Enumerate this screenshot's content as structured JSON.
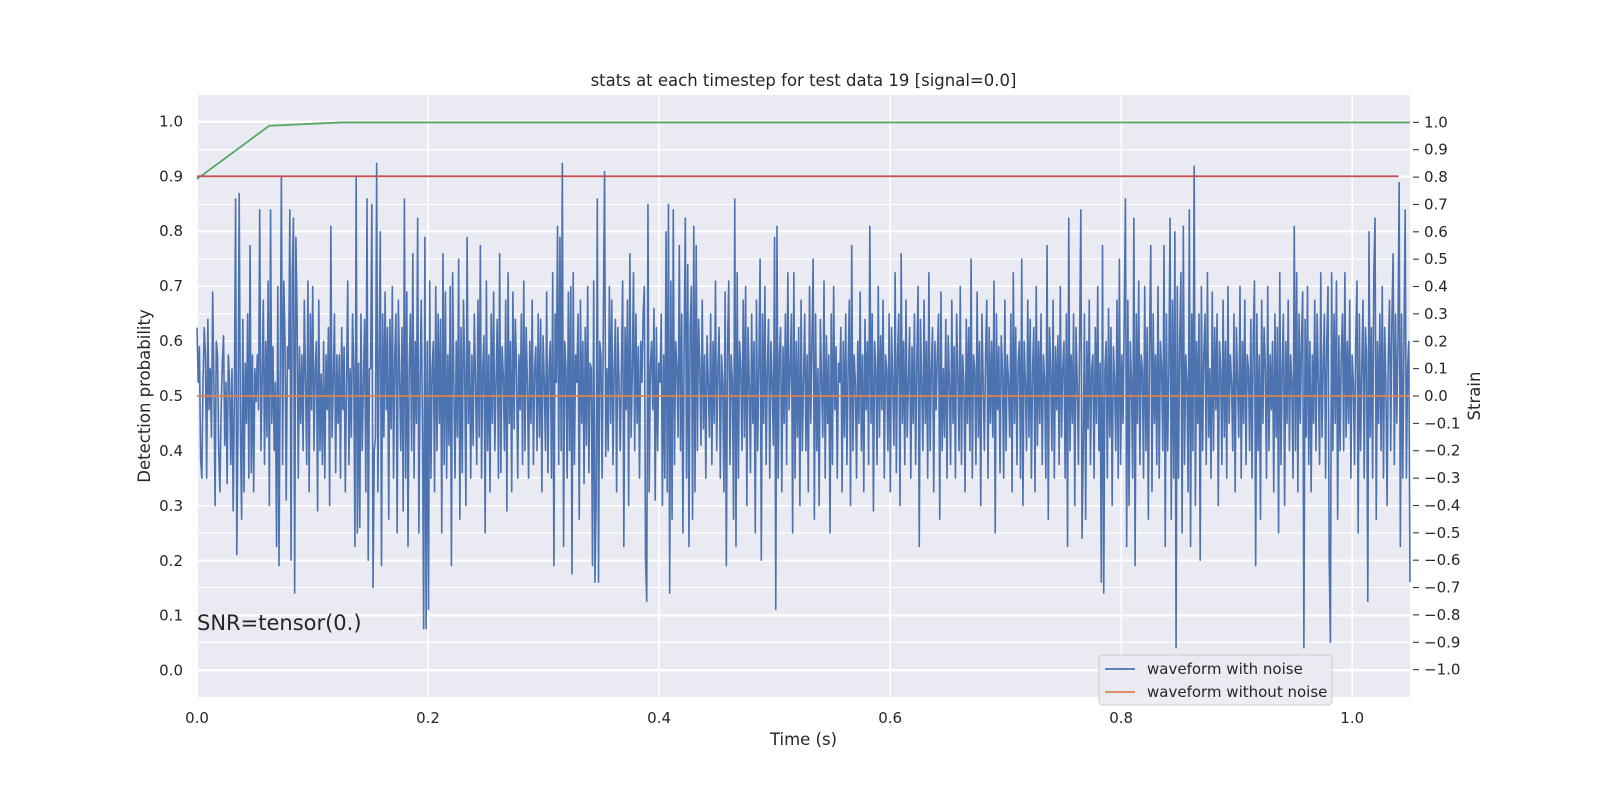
{
  "chart_data": {
    "type": "line",
    "title": "stats at each timestep for test data 19 [signal=0.0]",
    "xlabel": "Time (s)",
    "ylabel": "Detection probability",
    "y2label": "Strain",
    "annotation": "SNR=tensor(0.)",
    "xlim": [
      0.0,
      1.05
    ],
    "ylim": [
      -0.048,
      1.048
    ],
    "y2lim": [
      -1.1,
      1.1
    ],
    "grid": true,
    "background": "#eaeaf2",
    "legend_position": "lower-right",
    "x_ticks": [
      "0.0",
      "0.2",
      "0.4",
      "0.6",
      "0.8",
      "1.0"
    ],
    "y_ticks": [
      "0.0",
      "0.1",
      "0.2",
      "0.3",
      "0.4",
      "0.5",
      "0.6",
      "0.7",
      "0.8",
      "0.9",
      "1.0"
    ],
    "y2_ticks": [
      "−1.0",
      "−0.9",
      "−0.8",
      "−0.7",
      "−0.6",
      "−0.5",
      "−0.4",
      "−0.3",
      "−0.2",
      "−0.1",
      "0.0",
      "0.1",
      "0.2",
      "0.3",
      "0.4",
      "0.5",
      "0.6",
      "0.7",
      "0.8",
      "0.9",
      "1.0"
    ],
    "series": [
      {
        "name": "waveform with noise",
        "axis": "right",
        "color": "#4c72b0",
        "x_start": 0.0,
        "x_end": 1.05,
        "y": [
          0.25,
          0.05,
          0.18,
          -0.23,
          -0.3,
          0.05,
          0.25,
          0.15,
          -0.3,
          0.28,
          -0.05,
          0.1,
          -0.15,
          0.38,
          0.05,
          -0.4,
          0.2,
          0.15,
          -0.2,
          -0.35,
          -0.05,
          0.12,
          0.22,
          -0.18,
          0.05,
          -0.32,
          0.15,
          0.05,
          -0.25,
          0.1,
          -0.42,
          0.0,
          0.72,
          -0.58,
          -0.1,
          0.74,
          -0.12,
          -0.45,
          0.28,
          -0.35,
          0.12,
          -0.1,
          0.3,
          -0.3,
          0.55,
          -0.28,
          0.15,
          -0.35,
          0.1,
          -0.02,
          0.15,
          -0.05,
          0.68,
          -0.2,
          0.05,
          0.35,
          -0.25,
          0.2,
          -0.15,
          0.42,
          -0.4,
          0.68,
          -0.1,
          0.18,
          -0.2,
          0.05,
          -0.55,
          0.4,
          -0.62,
          0.08,
          0.8,
          -0.25,
          0.42,
          0.2,
          -0.38,
          0.18,
          0.1,
          0.68,
          -0.6,
          0.45,
          0.65,
          -0.72,
          0.58,
          0.3,
          -0.3,
          0.18,
          -0.1,
          0.15,
          -0.2,
          0.35,
          0.05,
          -0.25,
          0.42,
          -0.35,
          0.3,
          -0.05,
          0.4,
          -0.2,
          0.1,
          0.2,
          -0.42,
          0.35,
          -0.2,
          0.08,
          -0.25,
          0.2,
          -0.3,
          0.15,
          -0.05,
          0.25,
          -0.4,
          0.62,
          -0.15,
          0.05,
          0.3,
          -0.28,
          0.15,
          -0.1,
          0.15,
          -0.3,
          0.25,
          -0.05,
          0.18,
          -0.35,
          0.05,
          0.42,
          -0.25,
          0.1,
          -0.15,
          0.3,
          0.1,
          -0.55,
          0.8,
          -0.5,
          0.12,
          -0.48,
          0.3,
          -0.2,
          0.05,
          0.28,
          -0.35,
          0.72,
          -0.6,
          0.1,
          0.1,
          0.7,
          -0.7,
          -0.2,
          -0.15,
          0.85,
          -0.35,
          0.12,
          0.6,
          -0.62,
          0.3,
          -0.15,
          0.38,
          -0.05,
          0.25,
          -0.45,
          0.28,
          -0.12,
          0.4,
          -0.3,
          0.15,
          0.3,
          -0.5,
          0.35,
          0.08,
          -0.2,
          0.25,
          -0.42,
          0.72,
          -0.3,
          0.38,
          -0.55,
          0.1,
          0.3,
          -0.2,
          0.52,
          -0.3,
          0.2,
          -0.1,
          0.65,
          -0.5,
          0.05,
          0.35,
          -0.12,
          -0.85,
          0.58,
          -0.85,
          0.2,
          -0.78,
          0.42,
          -0.3,
          0.1,
          0.2,
          -0.35,
          0.4,
          -0.2,
          0.3,
          -0.1,
          0.28,
          -0.5,
          0.52,
          -0.25,
          0.38,
          -0.3,
          0.15,
          -0.18,
          0.4,
          -0.62,
          0.45,
          0.05,
          -0.3,
          0.2,
          -0.15,
          0.5,
          -0.45,
          0.25,
          -0.28,
          0.35,
          0.1,
          -0.4,
          0.58,
          -0.1,
          0.2,
          -0.3,
          0.15,
          -0.18,
          0.3,
          0.05,
          -0.25,
          0.35,
          -0.15,
          0.55,
          -0.3,
          0.1,
          0.22,
          -0.5,
          0.42,
          -0.2,
          0.15,
          -0.35,
          0.3,
          -0.1,
          0.38,
          -0.2,
          0.05,
          0.28,
          -0.3,
          0.52,
          -0.28,
          0.18,
          0.08,
          -0.2,
          0.35,
          -0.42,
          0.45,
          -0.1,
          0.2,
          -0.35,
          0.38,
          -0.12,
          0.28,
          0.1,
          -0.3,
          0.15,
          -0.05,
          0.3,
          -0.25,
          0.42,
          -0.2,
          0.25,
          0.05,
          -0.3,
          0.2,
          -0.1,
          0.35,
          -0.25,
          0.1,
          0.18,
          -0.2,
          0.3,
          -0.15,
          0.28,
          -0.35,
          0.22,
          0.05,
          -0.2,
          0.38,
          -0.28,
          0.1,
          0.2,
          -0.3,
          0.45,
          -0.62,
          0.3,
          0.05,
          0.62,
          -0.25,
          0.58,
          -0.2,
          0.85,
          -0.55,
          0.2,
          0.1,
          -0.3,
          0.38,
          -0.2,
          0.4,
          -0.65,
          0.45,
          -0.25,
          0.15,
          0.05,
          0.3,
          -0.45,
          0.35,
          -0.1,
          0.2,
          -0.32,
          0.25,
          -0.18,
          0.4,
          -0.28,
          0.12,
          0.1,
          -0.62,
          0.42,
          -0.68,
          -0.4,
          0.72,
          -0.68,
          0.2,
          0.15,
          -0.3,
          0.28,
          0.82,
          -0.22,
          0.1,
          -0.2,
          0.4,
          -0.1,
          0.35,
          -0.25,
          0.1,
          0.28,
          -0.35,
          0.25,
          0.05,
          -0.2,
          0.1,
          0.42,
          -0.55,
          0.25,
          -0.05,
          0.35,
          -0.4,
          0.52,
          -0.15,
          0.08,
          0.45,
          -0.2,
          0.3,
          -0.1,
          0.18,
          -0.3,
          0.2,
          0.05,
          0.3,
          0.4,
          -0.6,
          -0.75,
          0.7,
          -0.35,
          0.1,
          0.2,
          -0.05,
          0.32,
          -0.38,
          0.25,
          -0.2,
          0.12,
          0.05,
          0.3,
          -0.4,
          0.15,
          -0.3,
          0.6,
          -0.35,
          0.7,
          -0.72,
          0.42,
          -0.45,
          0.68,
          -0.25,
          0.2,
          0.1,
          -0.15,
          0.55,
          -0.2,
          0.3,
          -0.5,
          0.18,
          0.65,
          -0.3,
          0.48,
          -0.55,
          0.25,
          0.4,
          -0.45,
          0.62,
          -0.35,
          0.55,
          -0.2,
          0.28,
          0.1,
          -0.18,
          0.35,
          -0.12,
          0.15,
          -0.3,
          0.22,
          0.05,
          -0.15,
          0.3,
          -0.25,
          0.2,
          -0.1,
          0.42,
          -0.2,
          0.1,
          0.25,
          -0.3,
          0.15,
          0.05,
          -0.35,
          0.38,
          -0.62,
          0.18,
          0.42,
          -0.25,
          0.15,
          0.05,
          -0.45,
          0.72,
          -0.55,
          0.45,
          -0.3,
          0.2,
          0.1,
          -0.2,
          0.35,
          -0.15,
          0.4,
          -0.4,
          0.25,
          0.05,
          -0.28,
          0.3,
          -0.1,
          0.2,
          -0.5,
          0.35,
          -0.2,
          0.12,
          0.5,
          -0.6,
          0.3,
          -0.1,
          0.4,
          -0.25,
          0.1,
          0.28,
          -0.3,
          0.2,
          0.05,
          -0.18,
          0.58,
          -0.78,
          0.62,
          -0.3,
          0.15,
          0.25,
          -0.35,
          0.18,
          -0.1,
          0.3,
          -0.25,
          0.45,
          -0.05,
          0.1,
          0.3,
          -0.5,
          0.45,
          -0.3,
          0.2,
          -0.15,
          0.25,
          -0.4,
          0.35,
          -0.2,
          0.05,
          0.3,
          -0.2,
          0.15,
          -0.35,
          0.4,
          -0.1,
          0.2,
          0.5,
          -0.45,
          0.3,
          -0.2,
          0.1,
          -0.4,
          0.28,
          0.05,
          -0.15,
          0.42,
          -0.3,
          0.22,
          -0.1,
          0.15,
          -0.5,
          0.3,
          -0.25,
          0.4,
          -0.05,
          0.18,
          -0.3,
          0.12,
          0.05,
          0.25,
          -0.35,
          0.2,
          -0.15,
          0.3,
          -0.25,
          0.1,
          0.35,
          -0.4,
          0.55,
          -0.2,
          0.15,
          0.05,
          -0.3,
          0.2,
          -0.1,
          0.38,
          -0.2,
          0.15,
          -0.35,
          0.28,
          -0.05,
          0.2,
          -0.25,
          0.62,
          -0.1,
          0.3,
          -0.42,
          0.2,
          0.1,
          -0.25,
          0.4,
          -0.15,
          0.22,
          -0.05,
          0.35,
          -0.3,
          0.15,
          0.1,
          -0.2,
          0.3,
          -0.35,
          0.25,
          0.05,
          -0.18,
          0.45,
          -0.28,
          0.15,
          0.3,
          -0.4,
          0.52,
          -0.1,
          0.2,
          -0.25,
          0.35,
          -0.15,
          0.05,
          0.25,
          -0.3,
          0.18,
          -0.1,
          0.3,
          -0.25,
          0.12,
          0.4,
          -0.55,
          0.28,
          0.05,
          -0.2,
          0.35,
          -0.1,
          0.2,
          -0.3,
          0.45,
          -0.2,
          0.1,
          0.25,
          -0.35,
          0.2,
          -0.05,
          0.15,
          0.3,
          -0.45,
          0.38,
          -0.2,
          0.1,
          -0.15,
          0.28,
          -0.3,
          0.22,
          0.05,
          -0.25,
          0.35,
          -0.1,
          0.18,
          -0.3,
          0.3,
          0.08,
          -0.2,
          0.4,
          -0.25,
          0.15,
          0.05,
          -0.35,
          0.28,
          -0.1,
          0.25,
          -0.2,
          0.5,
          -0.3,
          0.15,
          0.1,
          -0.25,
          0.38,
          -0.15,
          0.2,
          -0.4,
          0.3,
          0.05,
          -0.2,
          0.15,
          0.35,
          -0.3,
          0.25,
          -0.1,
          0.2,
          -0.15,
          0.42,
          -0.5,
          0.3,
          -0.05,
          0.18,
          -0.28,
          0.22,
          0.1,
          -0.3,
          0.35,
          -0.2,
          0.15,
          0.05,
          -0.15,
          0.3,
          -0.35,
          0.45,
          -0.1,
          0.25,
          -0.25,
          0.12,
          0.2,
          -0.3,
          0.5,
          -0.4,
          0.2,
          0.05,
          -0.2,
          0.35,
          -0.15,
          0.28,
          -0.3,
          0.1,
          0.25,
          -0.35,
          0.4,
          -0.18,
          0.2,
          -0.1,
          0.3,
          -0.25,
          0.15,
          0.05,
          -0.3,
          0.55,
          -0.45,
          0.25,
          0.1,
          -0.2,
          0.35,
          -0.3,
          0.18,
          -0.05,
          0.22,
          -0.25,
          0.4,
          -0.15,
          0.1,
          0.2,
          -0.3,
          0.3,
          -0.55,
          0.65,
          -0.2,
          0.15,
          -0.1,
          0.3,
          -0.4,
          0.25,
          0.05,
          -0.25,
          0.2,
          0.68,
          -0.52,
          -0.2,
          0.3,
          -0.45,
          0.2,
          -0.12,
          0.35,
          -0.25,
          0.1,
          0.15,
          -0.3,
          0.25,
          -0.1,
          0.4,
          -0.2,
          0.12,
          -0.68,
          0.55,
          -0.72,
          0.1,
          0.2,
          -0.3,
          0.32,
          -0.15,
          0.25,
          -0.4,
          0.18,
          0.05,
          -0.2,
          0.35,
          -0.3,
          0.5,
          -0.25,
          0.15,
          -0.1,
          0.28,
          0.72,
          -0.55,
          0.35,
          -0.4,
          0.2,
          0.05,
          -0.3,
          0.65,
          -0.62,
          0.3,
          -0.1,
          0.42,
          -0.25,
          0.15,
          0.1,
          -0.3,
          0.4,
          -0.2,
          0.25,
          -0.45,
          0.2,
          0.55,
          -0.35,
          0.3,
          -0.1,
          0.15,
          -0.25,
          0.4,
          -0.3,
          0.2,
          0.1,
          -0.2,
          0.55,
          -0.55,
          0.3,
          -0.2,
          0.1,
          0.65,
          -0.45,
          0.35,
          -0.3,
          0.6,
          -0.92,
          0.4,
          -0.3,
          0.2,
          0.45,
          -0.5,
          0.62,
          -0.25,
          0.15,
          0.05,
          -0.35,
          0.68,
          -0.55,
          0.3,
          -0.2,
          0.84,
          -0.4,
          0.2,
          -0.1,
          0.3,
          -0.6,
          0.4,
          -0.2,
          0.15,
          0.3,
          -0.25,
          0.45,
          -0.15,
          0.1,
          -0.3,
          0.38,
          -0.2,
          0.25,
          -0.05,
          0.3,
          -0.4,
          0.2,
          0.1,
          -0.25,
          0.35,
          -0.15,
          0.2,
          -0.3,
          0.4,
          -0.1,
          0.15,
          0.05,
          -0.2,
          0.3,
          -0.35,
          0.25,
          0.05,
          -0.15,
          0.4,
          -0.3,
          0.2,
          -0.1,
          0.35,
          -0.25,
          0.15,
          0.1,
          -0.2,
          0.28,
          -0.3,
          0.22,
          0.42,
          -0.62,
          0.3,
          -0.2,
          0.15,
          -0.45,
          0.35,
          -0.1,
          0.25,
          0.1,
          -0.3,
          0.4,
          -0.2,
          0.15,
          -0.05,
          0.2,
          -0.35,
          0.3,
          -0.15,
          0.25,
          -0.5,
          0.45,
          -0.25,
          0.1,
          0.3,
          -0.4,
          0.2,
          -0.1,
          0.35,
          -0.2,
          0.15,
          0.05,
          -0.3,
          0.62,
          -0.2,
          0.45,
          -0.35,
          0.3,
          -0.1,
          0.2,
          0.38,
          -0.92,
          0.28,
          -0.15,
          0.4,
          -0.25,
          0.2,
          -0.35,
          0.15,
          -0.1,
          0.35,
          -0.2,
          0.3,
          0.05,
          -0.25,
          0.45,
          -0.15,
          0.1,
          0.3,
          -0.3,
          0.2,
          0.4,
          -0.6,
          -0.9,
          0.45,
          -0.2,
          0.3,
          -0.1,
          0.42,
          -0.45,
          0.22,
          -0.2,
          0.15,
          0.3,
          -0.2,
          0.45,
          -0.15,
          0.2,
          -0.1,
          0.35,
          -0.3,
          0.15,
          0.05,
          -0.25,
          0.2,
          0.42,
          -0.5,
          0.3,
          -0.2,
          0.1,
          0.35,
          -0.3,
          0.25,
          0.15,
          -0.75,
          0.6,
          -0.15,
          0.25,
          -0.3,
          0.45,
          0.65,
          -0.45,
          0.2,
          -0.1,
          0.3,
          -0.2,
          0.4,
          -0.3,
          0.25,
          0.05,
          -0.4,
          0.15,
          0.35,
          -0.2,
          0.28,
          0.52,
          -0.25,
          0.3,
          -0.1,
          0.2,
          0.78,
          -0.55,
          0.3,
          -0.3,
          0.2,
          0.68,
          -0.3,
          0.1,
          0.2,
          -0.68
        ]
      },
      {
        "name": "waveform without noise",
        "axis": "right",
        "color": "#dd8452",
        "x": [
          0.0,
          1.05
        ],
        "y": [
          0.0,
          0.0
        ]
      },
      {
        "axis": "left",
        "color": "#55a868",
        "x": [
          0.0,
          0.0625,
          0.125,
          0.1875,
          0.25,
          0.3125,
          0.375,
          0.4375,
          0.5,
          0.5625,
          0.625,
          0.6875,
          0.75,
          0.8125,
          0.875,
          0.9375,
          1.0,
          1.05
        ],
        "y": [
          0.895,
          0.992,
          0.998,
          0.998,
          0.998,
          0.998,
          0.998,
          0.998,
          0.998,
          0.998,
          0.998,
          0.998,
          0.998,
          0.998,
          0.998,
          0.998,
          0.998,
          0.998
        ]
      },
      {
        "axis": "left",
        "color": "#c44e52",
        "x": [
          0.0,
          1.04
        ],
        "y": [
          0.9,
          0.9
        ]
      }
    ]
  }
}
